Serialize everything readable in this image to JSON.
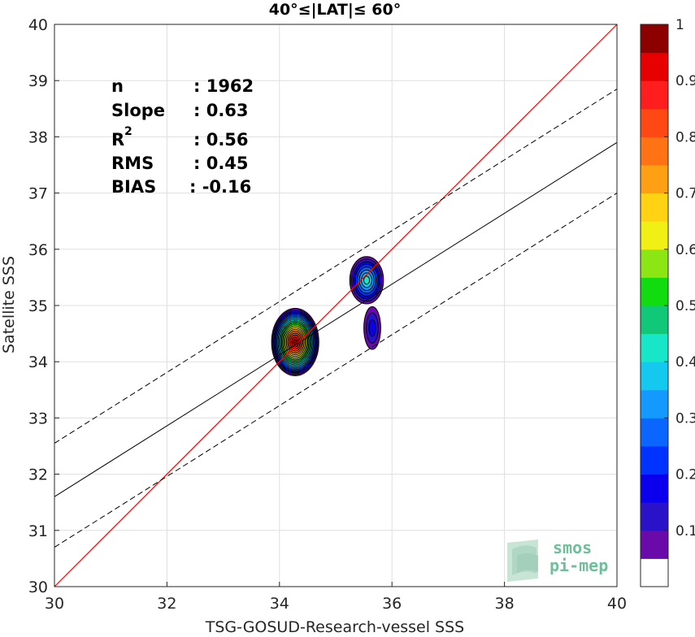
{
  "chart_data": {
    "type": "scatter",
    "title": "40°≤|LAT|≤ 60°",
    "xlabel": "TSG-GOSUD-Research-vessel SSS",
    "ylabel": "Satellite SSS",
    "xlim": [
      30,
      40
    ],
    "ylim": [
      30,
      40
    ],
    "xticks": [
      "30",
      "32",
      "34",
      "36",
      "38",
      "40"
    ],
    "yticks": [
      "30",
      "31",
      "32",
      "33",
      "34",
      "35",
      "36",
      "37",
      "38",
      "39",
      "40"
    ],
    "grid": true,
    "stats": {
      "n": {
        "label": "n",
        "value": ": 1962"
      },
      "slope": {
        "label": "Slope",
        "value": ": 0.63"
      },
      "r2": {
        "label": "R",
        "sup": "2",
        "value": ": 0.56"
      },
      "rms": {
        "label": "RMS",
        "value": ": 0.45"
      },
      "bias": {
        "label": "BIAS",
        "value": ": -0.16"
      }
    },
    "lines": {
      "identity": {
        "slope": 1,
        "intercept": 0,
        "color": "#ff0000"
      },
      "fit": {
        "y_at_30": 31.6,
        "y_at_40": 37.9
      },
      "upper": {
        "y_at_30": 32.55,
        "y_at_40": 38.85
      },
      "lower": {
        "y_at_30": 30.7,
        "y_at_40": 37.0
      }
    },
    "density_clusters": [
      {
        "name": "main",
        "cx": 34.28,
        "cy": 34.35,
        "rx": 0.42,
        "ry": 0.6,
        "peak": 1.0
      },
      {
        "name": "upper",
        "cx": 35.55,
        "cy": 35.45,
        "rx": 0.3,
        "ry": 0.42,
        "peak": 0.4
      },
      {
        "name": "tail",
        "cx": 35.65,
        "cy": 34.6,
        "rx": 0.15,
        "ry": 0.38,
        "peak": 0.15
      }
    ],
    "colorbar": {
      "range": [
        0,
        1
      ],
      "ticks": [
        "0.1",
        "0.2",
        "0.3",
        "0.4",
        "0.5",
        "0.6",
        "0.7",
        "0.8",
        "0.9",
        "1"
      ],
      "colors": [
        "#ffffff",
        "#6a0aab",
        "#2a12c8",
        "#0a00ee",
        "#0033ff",
        "#0a66ff",
        "#1499ff",
        "#14c8f0",
        "#18e6c8",
        "#10c878",
        "#10dc10",
        "#8ce614",
        "#f0f014",
        "#ffd214",
        "#ffa014",
        "#ff7314",
        "#ff4814",
        "#ff1e1e",
        "#e60000",
        "#8c0000"
      ]
    }
  },
  "logo": {
    "line1": "smos",
    "line2": "pi-mep"
  }
}
